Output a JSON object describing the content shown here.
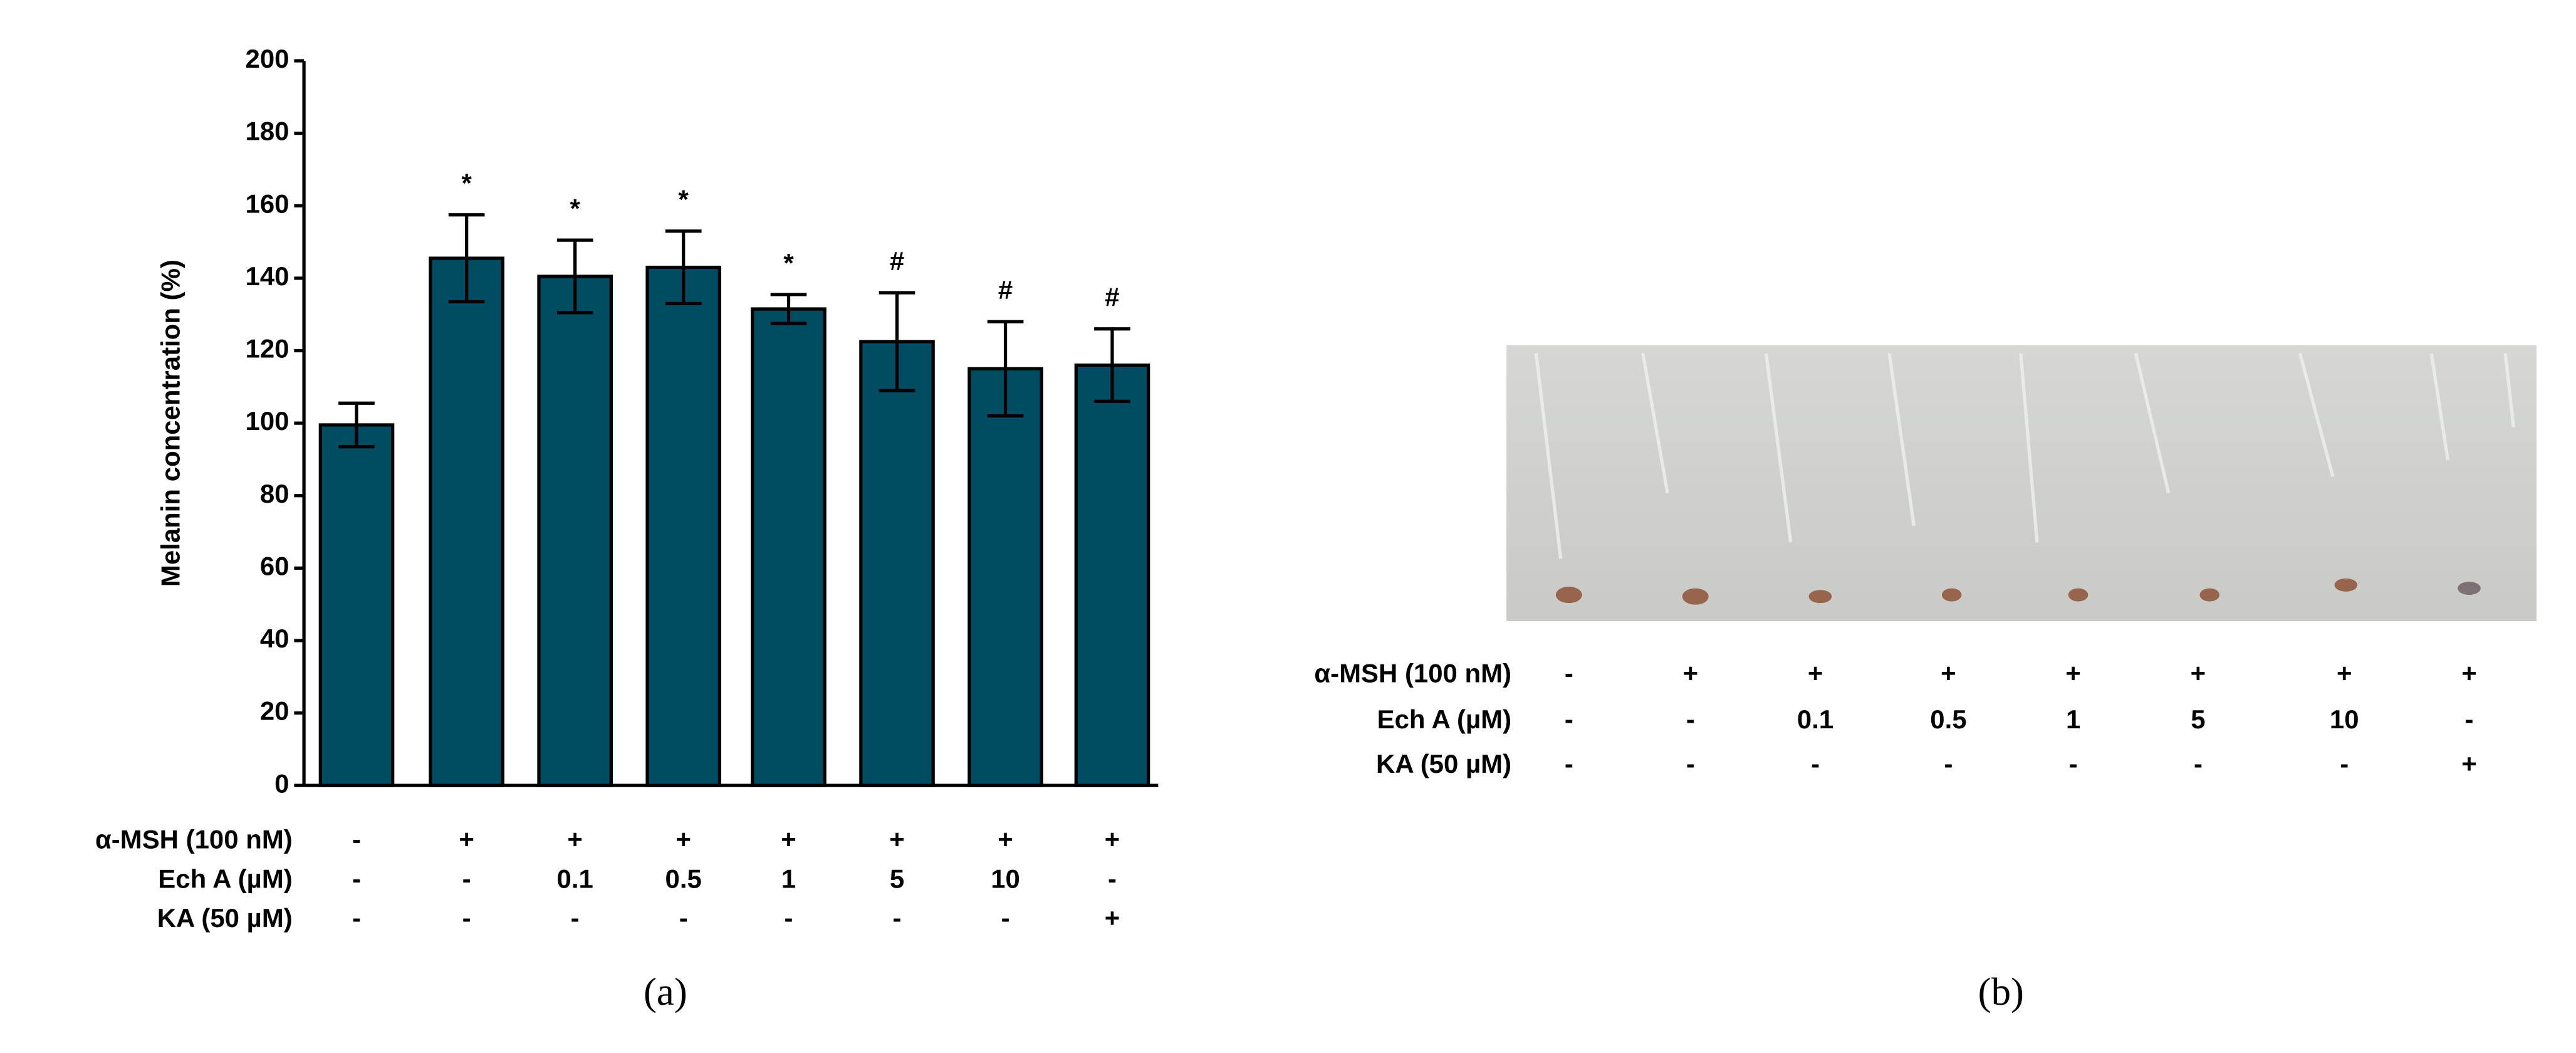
{
  "chart_data": {
    "type": "bar",
    "ylabel": "Melanin concentration (%)",
    "ylim": [
      0,
      200
    ],
    "yticks": [
      0,
      20,
      40,
      60,
      80,
      100,
      120,
      140,
      160,
      180,
      200
    ],
    "color": "#004c63",
    "values": [
      99.5,
      145.5,
      140.5,
      143,
      131.5,
      122.5,
      115,
      116
    ],
    "errors": [
      6,
      12,
      10,
      10,
      4,
      13.5,
      13,
      10
    ],
    "annotations": [
      null,
      "*",
      "*",
      "*",
      "*",
      "#",
      "#",
      "#"
    ],
    "conditions": [
      {
        "label": "α-MSH (100 nM)",
        "values": [
          "-",
          "+",
          "+",
          "+",
          "+",
          "+",
          "+",
          "+"
        ]
      },
      {
        "label": "Ech A (µM)",
        "values": [
          "-",
          "-",
          "0.1",
          "0.5",
          "1",
          "5",
          "10",
          "-"
        ]
      },
      {
        "label": "KA (50 µM)",
        "values": [
          "-",
          "-",
          "-",
          "-",
          "-",
          "-",
          "-",
          "+"
        ]
      }
    ]
  },
  "panel_b": {
    "conditions": [
      {
        "label": "α-MSH (100 nM)",
        "values": [
          "-",
          "+",
          "+",
          "+",
          "+",
          "+",
          "+",
          "+"
        ]
      },
      {
        "label": "Ech A (µM)",
        "values": [
          "-",
          "-",
          "0.1",
          "0.5",
          "1",
          "5",
          "10",
          "-"
        ]
      },
      {
        "label": "KA (50 µM)",
        "values": [
          "-",
          "-",
          "-",
          "-",
          "-",
          "-",
          "-",
          "+"
        ]
      }
    ]
  },
  "captions": [
    "(a)",
    "(b)"
  ]
}
